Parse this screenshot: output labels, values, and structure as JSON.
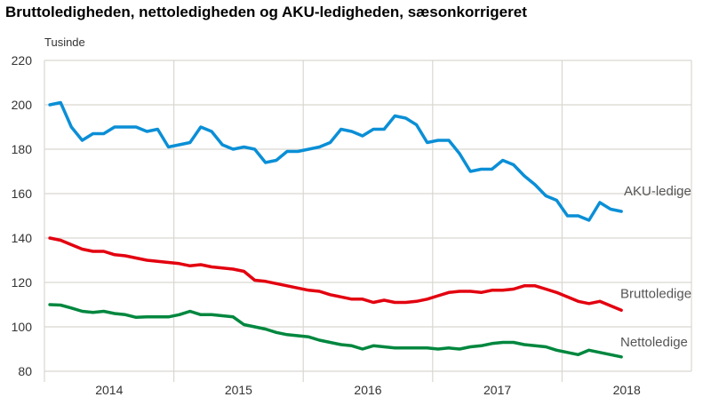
{
  "chart_data": {
    "type": "line",
    "title": "Bruttoledigheden, nettoledigheden og AKU-ledigheden, sæsonkorrigeret",
    "ylabel": "Tusinde",
    "xlabel": "",
    "ylim": [
      80,
      220
    ],
    "yticks": [
      80,
      100,
      120,
      140,
      160,
      180,
      200,
      220
    ],
    "xticks": [
      "2014",
      "2015",
      "2016",
      "2017",
      "2018"
    ],
    "x_start": "2014-01",
    "x_frequency": "monthly",
    "grid": true,
    "legend": "inline labels at line ends",
    "series": [
      {
        "name": "AKU-ledige",
        "color": "#0a8fd6",
        "values": [
          200,
          201,
          190,
          184,
          187,
          187,
          190,
          190,
          190,
          188,
          189,
          181,
          182,
          183,
          190,
          188,
          182,
          180,
          181,
          180,
          174,
          175,
          179,
          179,
          180,
          181,
          183,
          189,
          188,
          186,
          189,
          189,
          195,
          194,
          191,
          183,
          184,
          184,
          178,
          170,
          171,
          171,
          175,
          173,
          168,
          164,
          159,
          157,
          150,
          150,
          148,
          156,
          153,
          152
        ]
      },
      {
        "name": "Bruttoledige",
        "color": "#e3000f",
        "values": [
          140,
          139,
          137,
          135,
          134,
          134,
          132.5,
          132,
          131,
          130,
          129.5,
          129,
          128.5,
          127.5,
          128,
          127,
          126.5,
          126,
          125,
          121,
          120.5,
          119.5,
          118.5,
          117.5,
          116.5,
          116,
          114.5,
          113.5,
          112.5,
          112.5,
          111,
          112,
          111,
          111,
          111.5,
          112.5,
          114,
          115.5,
          116,
          116,
          115.5,
          116.5,
          116.5,
          117,
          118.5,
          118.5,
          117,
          115.5,
          113.5,
          111.5,
          110.5,
          111.5,
          109.5,
          107.5
        ]
      },
      {
        "name": "Nettoledige",
        "color": "#00873e",
        "values": [
          110,
          109.8,
          108.5,
          107,
          106.5,
          107,
          106,
          105.5,
          104.3,
          104.5,
          104.5,
          104.5,
          105.5,
          107,
          105.5,
          105.5,
          105,
          104.5,
          101,
          100,
          99,
          97.5,
          96.5,
          96,
          95.5,
          94,
          93,
          92,
          91.5,
          90,
          91.5,
          91,
          90.5,
          90.5,
          90.5,
          90.5,
          90,
          90.5,
          90,
          91,
          91.5,
          92.5,
          93,
          93,
          92,
          91.5,
          91,
          89.5,
          88.5,
          87.5,
          89.5,
          88.5,
          87.5,
          86.5
        ]
      }
    ]
  }
}
